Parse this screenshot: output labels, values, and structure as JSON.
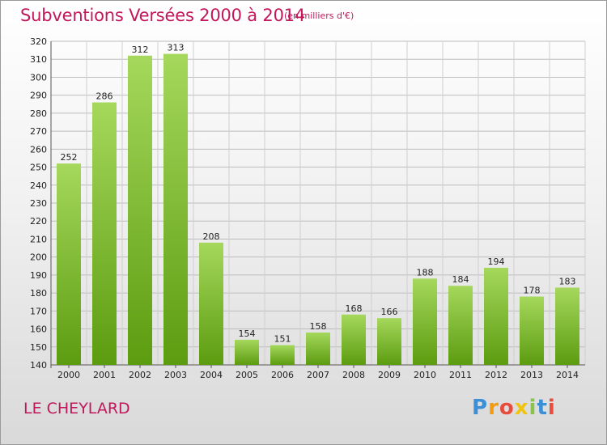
{
  "header": {
    "title": "Subventions Versées 2000 à 2014",
    "unit": "(en milliers d'€)"
  },
  "footer": {
    "commune": "LE CHEYLARD",
    "logo_text": "Proxiti"
  },
  "colors": {
    "title": "#c2185b",
    "bar_top": "#a3d65a",
    "bar_bottom": "#5e9e12",
    "grid": "#bdbdbd"
  },
  "chart_data": {
    "type": "bar",
    "title": "Subventions Versées 2000 à 2014",
    "xlabel": "",
    "ylabel": "",
    "categories": [
      "2000",
      "2001",
      "2002",
      "2003",
      "2004",
      "2005",
      "2006",
      "2007",
      "2008",
      "2009",
      "2010",
      "2011",
      "2012",
      "2013",
      "2014"
    ],
    "values": [
      252,
      286,
      312,
      313,
      208,
      154,
      151,
      158,
      168,
      166,
      188,
      184,
      194,
      178,
      183
    ],
    "ylim": [
      140,
      320
    ],
    "yticks": [
      140,
      150,
      160,
      170,
      180,
      190,
      200,
      210,
      220,
      230,
      240,
      250,
      260,
      270,
      280,
      290,
      300,
      310,
      320
    ],
    "grid": true,
    "data_labels": true
  }
}
